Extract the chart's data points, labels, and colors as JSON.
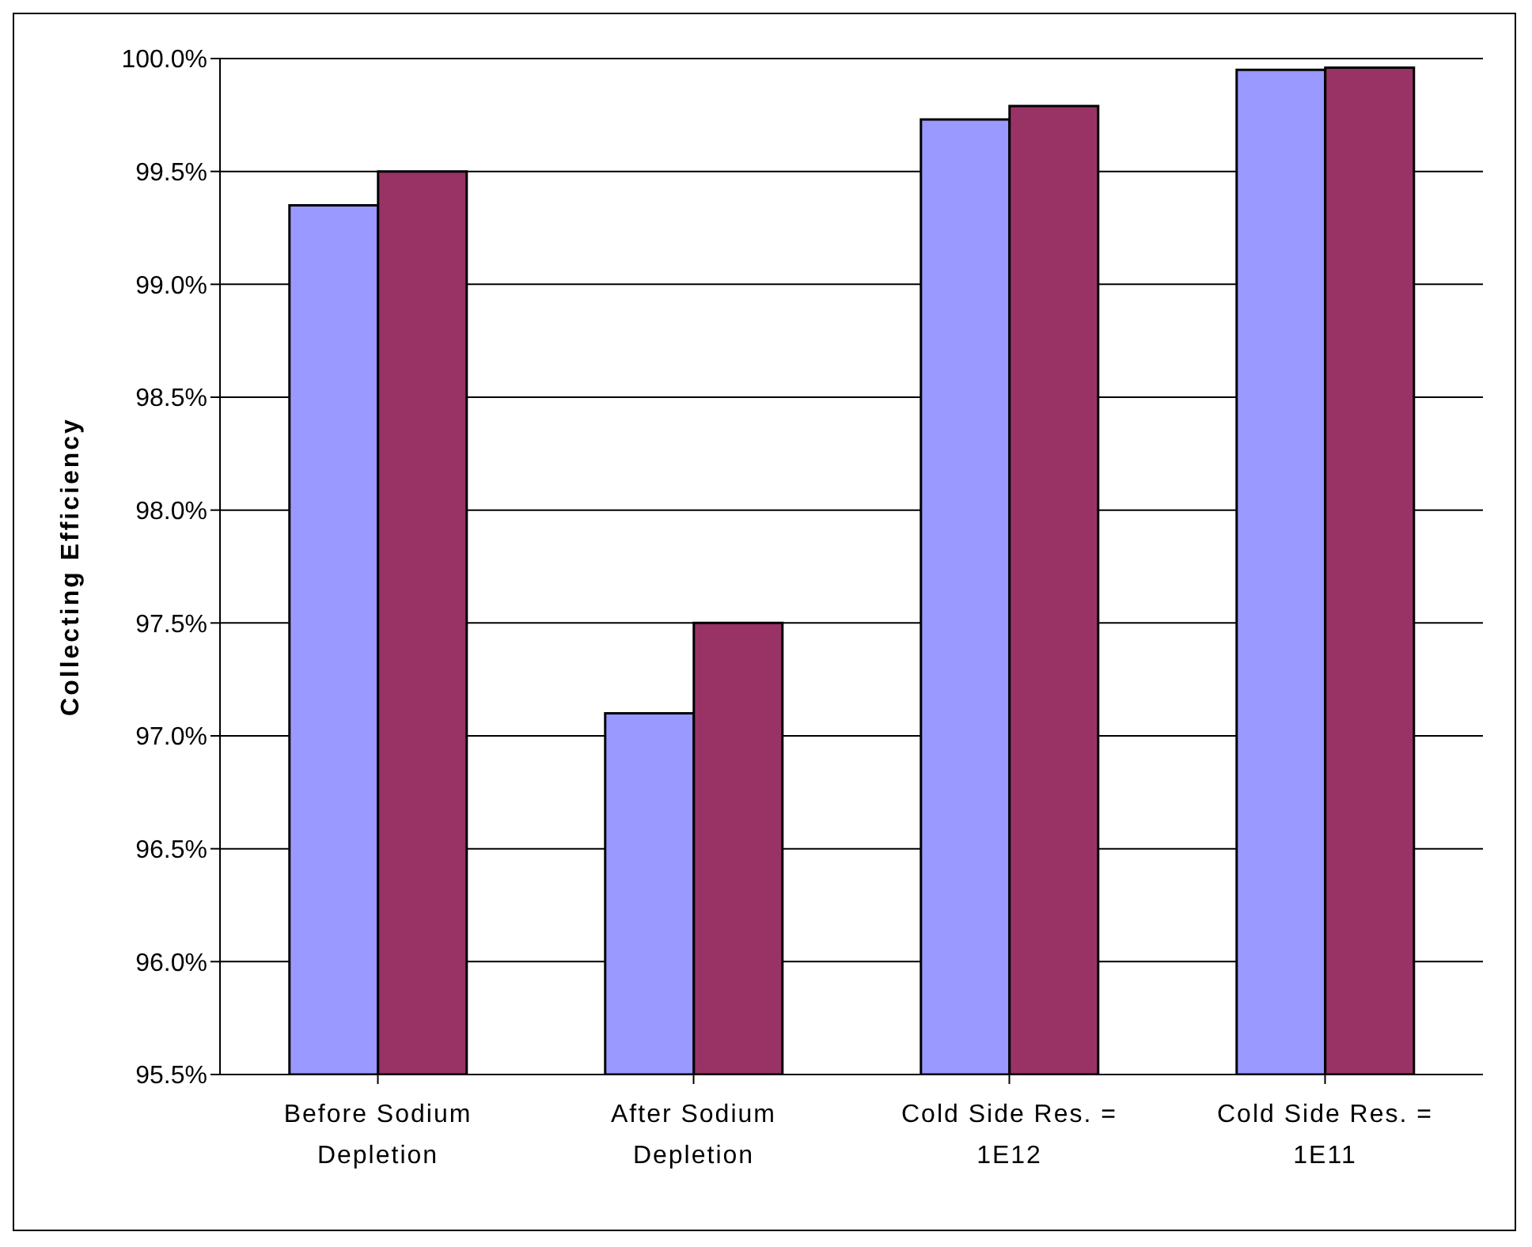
{
  "chart_data": {
    "type": "bar",
    "ylabel": "Collecting Efficiency",
    "categories": [
      "Before Sodium Depletion",
      "After Sodium Depletion",
      "Cold Side Res. = 1E12",
      "Cold Side Res. = 1E11"
    ],
    "series": [
      {
        "color": "#9999ff",
        "values": [
          99.35,
          97.1,
          99.73,
          99.95
        ]
      },
      {
        "color": "#993366",
        "values": [
          99.5,
          97.5,
          99.79,
          99.96
        ]
      }
    ],
    "ylim": [
      95.5,
      100
    ],
    "yticks": [
      {
        "value": 95.5,
        "label": "95.5%"
      },
      {
        "value": 96,
        "label": "96.0%"
      },
      {
        "value": 96.5,
        "label": "96.5%"
      },
      {
        "value": 97,
        "label": "97.0%"
      },
      {
        "value": 97.5,
        "label": "97.5%"
      },
      {
        "value": 98,
        "label": "98.0%"
      },
      {
        "value": 98.5,
        "label": "98.5%"
      },
      {
        "value": 99,
        "label": "99.0%"
      },
      {
        "value": 99.5,
        "label": "99.5%"
      },
      {
        "value": 100,
        "label": "100.0%"
      }
    ],
    "grid": "y"
  }
}
